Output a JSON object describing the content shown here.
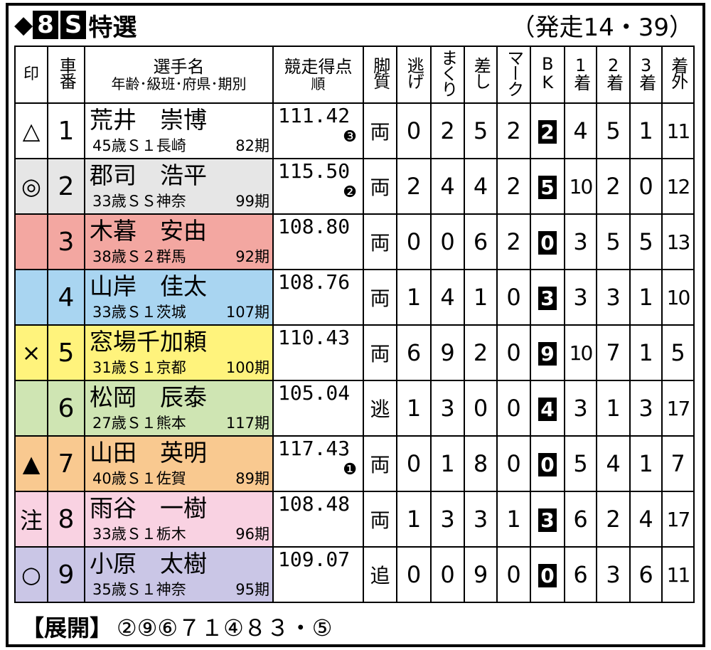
{
  "header": {
    "mark": "◆",
    "race_number": "8",
    "race_class": "S",
    "race_name": "特選",
    "start_time": "（発走14・39）"
  },
  "table": {
    "columns": [
      "印",
      "車番",
      [
        "選手名",
        "年齢･級班･府県･期別"
      ],
      [
        "競走得点",
        "順"
      ],
      "脚質",
      "逃げ",
      "まくり",
      "差し",
      "マーク",
      "BK",
      "1着",
      "2着",
      "3着",
      "着外"
    ],
    "rows": [
      {
        "color": "#ffffff",
        "mark": "△",
        "number": 1,
        "name": "荒井　崇博",
        "info": "45歳Ｓ１長崎",
        "term": "82期",
        "score": "111.42",
        "rank": "❸",
        "style": "両",
        "escape": 0,
        "makuri": 2,
        "sashi": 5,
        "mark_count": 2,
        "bk": 2,
        "first": 4,
        "second": 5,
        "third": 1,
        "out": 11
      },
      {
        "color": "#e6e6e6",
        "mark": "◎",
        "number": 2,
        "name": "郡司　浩平",
        "info": "33歳ＳＳ神奈",
        "term": "99期",
        "score": "115.50",
        "rank": "❷",
        "style": "両",
        "escape": 2,
        "makuri": 4,
        "sashi": 4,
        "mark_count": 2,
        "bk": 5,
        "first": 10,
        "second": 2,
        "third": 0,
        "out": 12
      },
      {
        "color": "#f3a7a1",
        "number": 3,
        "name": "木暮　安由",
        "info": "38歳Ｓ２群馬",
        "term": "92期",
        "score": "108.80",
        "style": "両",
        "escape": 0,
        "makuri": 0,
        "sashi": 6,
        "mark_count": 2,
        "bk": 0,
        "first": 3,
        "second": 5,
        "third": 5,
        "out": 13
      },
      {
        "color": "#a9d5f1",
        "number": 4,
        "name": "山岸　佳太",
        "info": "33歳Ｓ１茨城",
        "term": "107期",
        "score": "108.76",
        "style": "両",
        "escape": 1,
        "makuri": 4,
        "sashi": 1,
        "mark_count": 0,
        "bk": 3,
        "first": 3,
        "second": 3,
        "third": 1,
        "out": 10
      },
      {
        "color": "#fff37c",
        "mark": "×",
        "number": 5,
        "name": "窓場千加頼",
        "info": "31歳Ｓ１京都",
        "term": "100期",
        "score": "110.43",
        "style": "両",
        "escape": 6,
        "makuri": 9,
        "sashi": 2,
        "mark_count": 0,
        "bk": 9,
        "first": 10,
        "second": 7,
        "third": 1,
        "out": 5
      },
      {
        "color": "#cfe5b3",
        "number": 6,
        "name": "松岡　辰泰",
        "info": "27歳Ｓ１熊本",
        "term": "117期",
        "score": "105.04",
        "style": "逃",
        "escape": 1,
        "makuri": 3,
        "sashi": 0,
        "mark_count": 0,
        "bk": 4,
        "first": 3,
        "second": 1,
        "third": 3,
        "out": 17
      },
      {
        "color": "#f9c990",
        "mark": "▲",
        "number": 7,
        "name": "山田　英明",
        "info": "40歳Ｓ１佐賀",
        "term": "89期",
        "score": "117.43",
        "rank": "❶",
        "style": "両",
        "escape": 0,
        "makuri": 1,
        "sashi": 8,
        "mark_count": 0,
        "bk": 0,
        "first": 5,
        "second": 4,
        "third": 1,
        "out": 7
      },
      {
        "color": "#f9d2e2",
        "mark": "注",
        "number": 8,
        "name": "雨谷　一樹",
        "info": "33歳Ｓ１栃木",
        "term": "96期",
        "score": "108.48",
        "style": "両",
        "escape": 1,
        "makuri": 3,
        "sashi": 3,
        "mark_count": 1,
        "bk": 3,
        "first": 6,
        "second": 2,
        "third": 4,
        "out": 17
      },
      {
        "color": "#cac6e6",
        "mark": "○",
        "number": 9,
        "name": "小原　太樹",
        "info": "35歳Ｓ１神奈",
        "term": "95期",
        "score": "109.07",
        "style": "追",
        "escape": 0,
        "makuri": 0,
        "sashi": 9,
        "mark_count": 0,
        "bk": 0,
        "first": 6,
        "second": 3,
        "third": 6,
        "out": 11
      }
    ]
  },
  "footer": {
    "label": "【展開】",
    "prediction": "②⑨⑥７１④８３・⑤"
  }
}
